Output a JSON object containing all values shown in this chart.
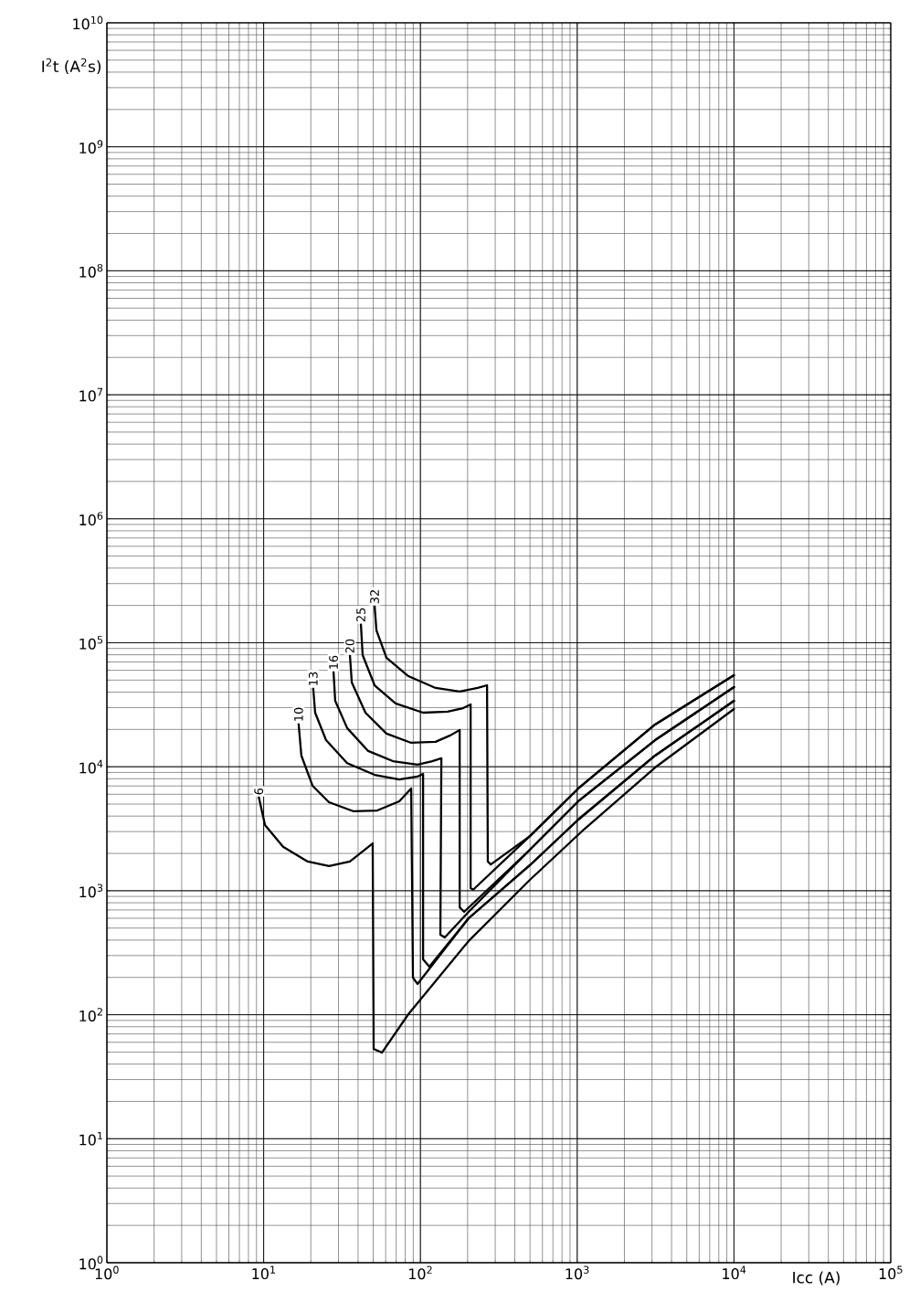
{
  "chart_data": {
    "type": "line",
    "xlabel": "Icc (A)",
    "ylabel": "I$^{2}$t (A$^{2}$s)",
    "log": "xy",
    "grid": true,
    "marker": "none",
    "line_style": "solid",
    "xlim": [
      1,
      100000
    ],
    "ylim": [
      1,
      10000000000
    ],
    "xticks": [
      {
        "value": 1,
        "label": "10$^{0}$"
      },
      {
        "value": 10,
        "label": "10$^{1}$"
      },
      {
        "value": 100,
        "label": "10$^{2}$"
      },
      {
        "value": 1000,
        "label": "10$^{3}$"
      },
      {
        "value": 10000,
        "label": "10$^{4}$"
      },
      {
        "value": 100000,
        "label": "10$^{5}$"
      }
    ],
    "yticks": [
      {
        "value": 1,
        "label": "10$^{0}$"
      },
      {
        "value": 10,
        "label": "10$^{1}$"
      },
      {
        "value": 100,
        "label": "10$^{2}$"
      },
      {
        "value": 1000,
        "label": "10$^{3}$"
      },
      {
        "value": 10000,
        "label": "10$^{4}$"
      },
      {
        "value": 100000,
        "label": "10$^{5}$"
      },
      {
        "value": 1000000,
        "label": "10$^{6}$"
      },
      {
        "value": 10000000,
        "label": "10$^{7}$"
      },
      {
        "value": 100000000,
        "label": "10$^{8}$"
      },
      {
        "value": 1000000000,
        "label": "10$^{9}$"
      },
      {
        "value": 10000000000,
        "label": "10$^{10}$"
      }
    ],
    "series": [
      {
        "name": "6",
        "color": "#000000",
        "x": [
          9.3,
          10.2,
          13.3,
          19.1,
          26.1,
          35.5,
          49.6,
          50.3,
          56.8,
          83.8,
          203,
          499,
          1117,
          3140,
          10000
        ],
        "values": [
          5730,
          3390,
          2260,
          1720,
          1580,
          1720,
          2410,
          53,
          49.5,
          101,
          393,
          1224,
          3163,
          9860,
          29200
        ]
      },
      {
        "name": "10",
        "color": "#000000",
        "x": [
          16.7,
          17.4,
          20.5,
          26.1,
          37.5,
          53.1,
          73.3,
          87.3,
          89.6,
          95.8,
          203,
          499,
          1016,
          3140,
          10000
        ],
        "values": [
          22300,
          12300,
          7030,
          5180,
          4370,
          4440,
          5270,
          6680,
          199,
          177,
          600,
          1606,
          3750,
          12300,
          34000
        ]
      },
      {
        "name": "13",
        "color": "#000000",
        "x": [
          20.7,
          21.3,
          25.0,
          34.1,
          51.0,
          73.3,
          95.8,
          104,
          104,
          114,
          203,
          499,
          1016,
          3140,
          10000
        ],
        "values": [
          43200,
          27300,
          16400,
          10700,
          8610,
          7910,
          8330,
          8770,
          280,
          244,
          600,
          1606,
          3750,
          12300,
          34000
        ]
      },
      {
        "name": "16",
        "color": "#000000",
        "x": [
          27.9,
          28.6,
          34.1,
          46.4,
          66.7,
          95.8,
          119,
          136,
          134,
          143,
          203,
          499,
          1016,
          3140,
          10000
        ],
        "values": [
          58600,
          34000,
          20500,
          13400,
          11100,
          10400,
          11100,
          11700,
          442,
          420,
          676,
          2140,
          5270,
          16400,
          43900
        ]
      },
      {
        "name": "20",
        "color": "#000000",
        "x": [
          35.5,
          36.5,
          44.6,
          60.7,
          87.3,
          125,
          155,
          178,
          178,
          190,
          499,
          1016,
          3140,
          10000
        ],
        "values": [
          79500,
          47800,
          27300,
          18500,
          15600,
          15900,
          17900,
          19800,
          736,
          676,
          2140,
          5270,
          16400,
          43900
        ]
      },
      {
        "name": "25",
        "color": "#000000",
        "x": [
          41.7,
          42.8,
          51.0,
          69.4,
          104,
          149,
          187,
          209,
          209,
          217,
          499,
          1016,
          3140,
          10000
        ],
        "values": [
          142000,
          79500,
          45400,
          32400,
          27300,
          27800,
          29700,
          31800,
          1050,
          1020,
          2760,
          6680,
          21900,
          54700
        ]
      },
      {
        "name": "32",
        "color": "#000000",
        "x": [
          51.0,
          52.4,
          60.7,
          83.8,
          125,
          178,
          232,
          266,
          269,
          281,
          499,
          1016,
          3140,
          10000
        ],
        "values": [
          199000,
          126000,
          75600,
          53800,
          43200,
          40400,
          43200,
          45400,
          1720,
          1630,
          2760,
          6680,
          21900,
          54700
        ]
      }
    ]
  }
}
